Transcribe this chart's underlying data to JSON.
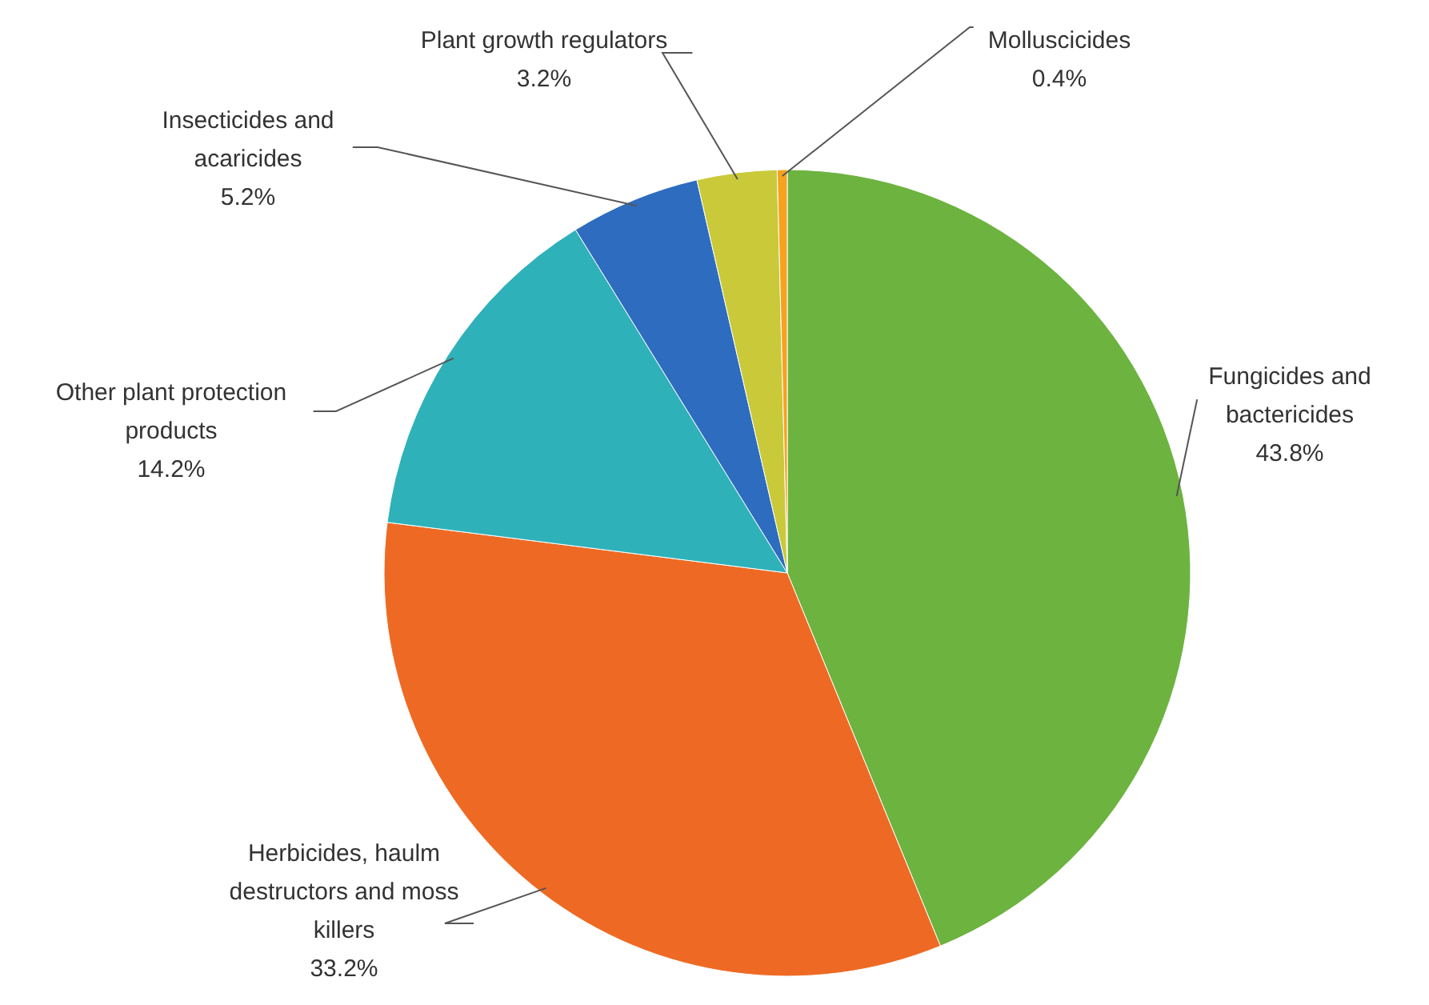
{
  "chart_data": {
    "type": "pie",
    "categories": [
      "Fungicides and bactericides",
      "Herbicides, haulm destructors and moss killers",
      "Other plant protection products",
      "Insecticides and acaricides",
      "Plant growth regulators",
      "Molluscicides"
    ],
    "values": [
      43.8,
      33.2,
      14.2,
      5.2,
      3.2,
      0.4
    ],
    "value_labels": [
      "43.8%",
      "33.2%",
      "14.2%",
      "5.2%",
      "3.2%",
      "0.4%"
    ],
    "colors": [
      "#6db33f",
      "#ee6a24",
      "#2fb1b9",
      "#2e6cbf",
      "#c9c93a",
      "#f5a31e"
    ]
  }
}
